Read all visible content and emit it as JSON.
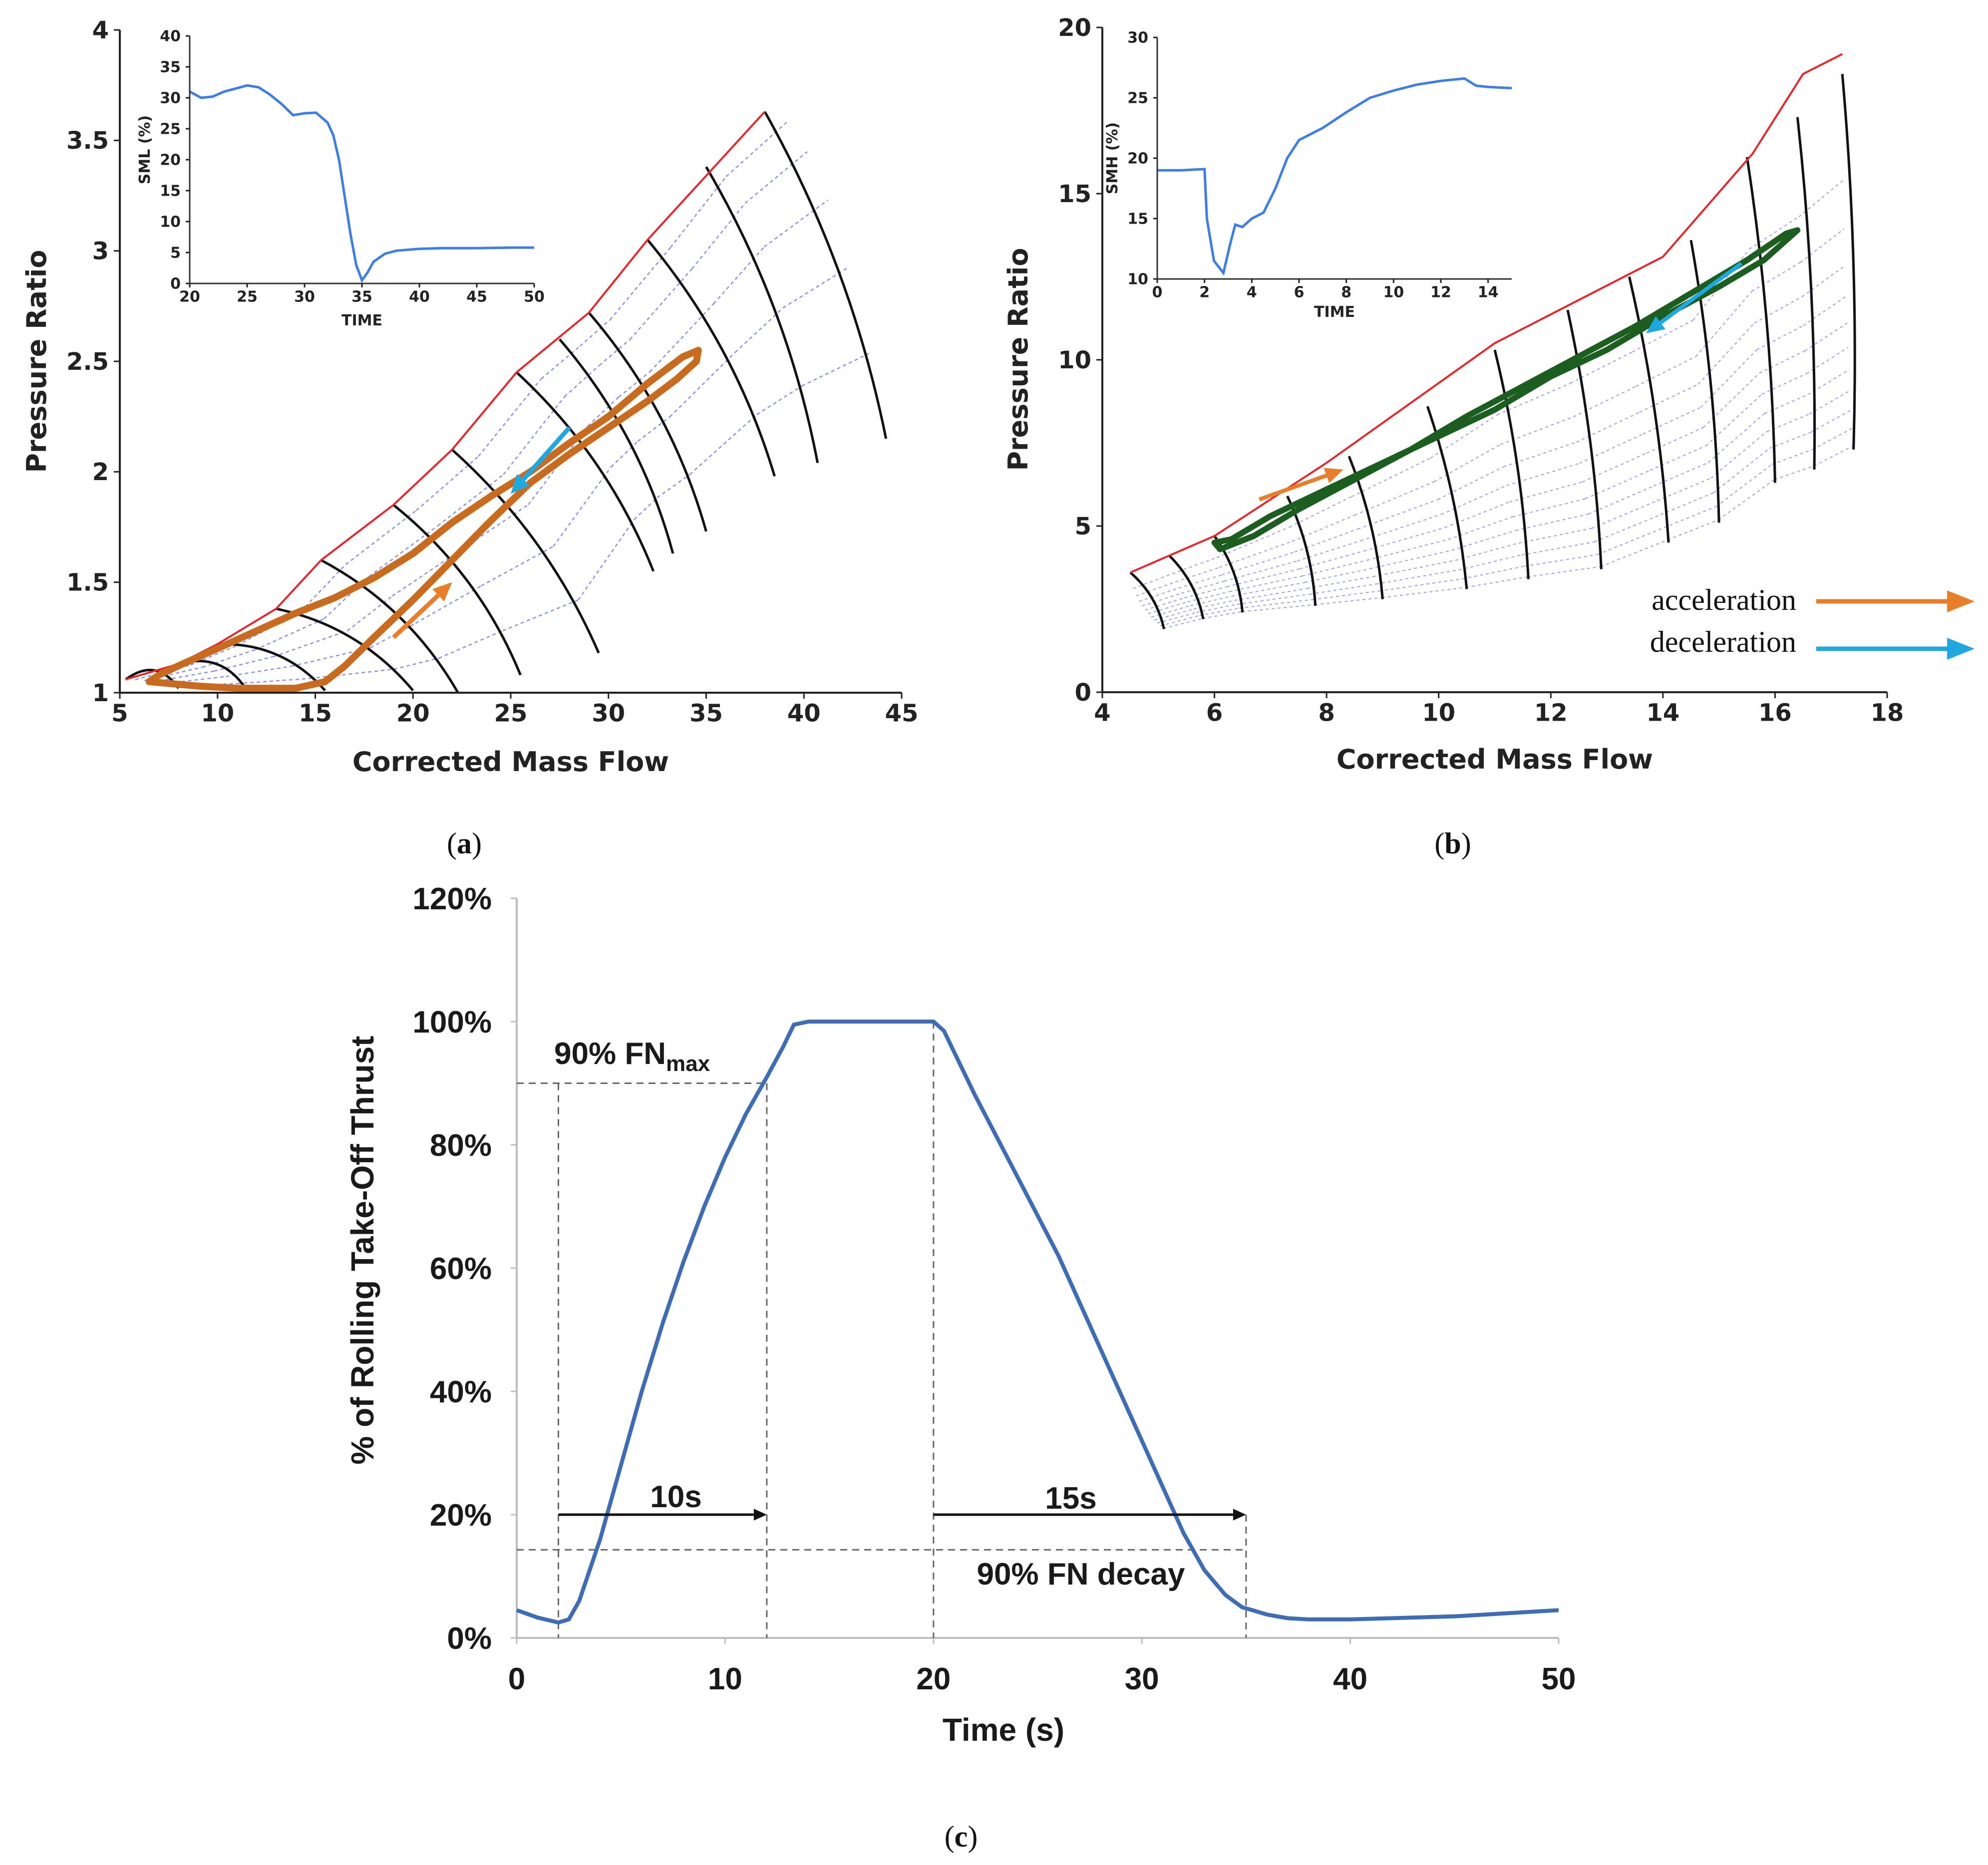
{
  "chart_data": [
    {
      "id": "a",
      "type": "line",
      "panel_label": "a",
      "xlabel": "Corrected Mass Flow",
      "ylabel": "Pressure Ratio",
      "xlim": [
        5,
        45
      ],
      "ylim": [
        1,
        4
      ],
      "xticks": [
        5,
        10,
        15,
        20,
        25,
        30,
        35,
        40,
        45
      ],
      "yticks": [
        1,
        1.5,
        2,
        2.5,
        3,
        3.5,
        4
      ],
      "ytick_labels": [
        "1",
        "1.5",
        "2",
        "2.5",
        "3",
        "3.5",
        "4"
      ],
      "surge_line": {
        "color": "#e8252b",
        "x": [
          5.3,
          8,
          10,
          13,
          15.3,
          19,
          22,
          25.3,
          29,
          32,
          38
        ],
        "y": [
          1.06,
          1.13,
          1.22,
          1.38,
          1.6,
          1.85,
          2.1,
          2.45,
          2.72,
          3.05,
          3.63
        ]
      },
      "speed_lines": [
        {
          "start": [
            5.3,
            1.06
          ],
          "end": [
            8,
            1.02
          ]
        },
        {
          "start": [
            8,
            1.13
          ],
          "end": [
            11.5,
            1.01
          ]
        },
        {
          "start": [
            10,
            1.22
          ],
          "end": [
            15.5,
            1.01
          ]
        },
        {
          "start": [
            13,
            1.38
          ],
          "end": [
            20,
            1.01
          ]
        },
        {
          "start": [
            15.3,
            1.6
          ],
          "end": [
            22.3,
            1.0
          ]
        },
        {
          "start": [
            19,
            1.85
          ],
          "end": [
            25.5,
            1.08
          ]
        },
        {
          "start": [
            22,
            2.1
          ],
          "end": [
            29.5,
            1.18
          ]
        },
        {
          "start": [
            25.3,
            2.45
          ],
          "end": [
            32.3,
            1.55
          ]
        },
        {
          "start": [
            27.5,
            2.6
          ],
          "end": [
            33.3,
            1.63
          ]
        },
        {
          "start": [
            29,
            2.72
          ],
          "end": [
            35,
            1.73
          ]
        },
        {
          "start": [
            32,
            3.05
          ],
          "end": [
            38.5,
            1.98
          ]
        },
        {
          "start": [
            35,
            3.38
          ],
          "end": [
            40.7,
            2.04
          ]
        },
        {
          "start": [
            38,
            3.63
          ],
          "end": [
            44.2,
            2.15
          ]
        }
      ],
      "transient_path": {
        "color": "#c96b1e",
        "x": [
          6.5,
          9,
          11,
          12.5,
          14,
          15.5,
          16.5,
          18,
          20,
          22,
          24,
          26,
          28,
          30,
          32,
          33.5,
          34.5,
          34.6,
          33.8,
          32,
          30,
          28,
          26,
          24,
          22,
          20,
          18,
          16,
          14,
          12,
          10,
          8.2,
          7
        ],
        "y": [
          1.05,
          1.03,
          1.02,
          1.02,
          1.02,
          1.05,
          1.12,
          1.25,
          1.42,
          1.6,
          1.78,
          1.95,
          2.08,
          2.2,
          2.32,
          2.42,
          2.5,
          2.55,
          2.52,
          2.4,
          2.25,
          2.13,
          2.0,
          1.89,
          1.77,
          1.63,
          1.52,
          1.43,
          1.36,
          1.28,
          1.2,
          1.13,
          1.08
        ]
      },
      "arrows": [
        {
          "name": "acceleration",
          "color": "#e87e2a",
          "from": [
            19,
            1.25
          ],
          "to": [
            22,
            1.5
          ]
        },
        {
          "name": "deceleration",
          "color": "#1fa7e0",
          "from": [
            28,
            2.2
          ],
          "to": [
            25,
            1.9
          ]
        }
      ],
      "inset": {
        "ylabel": "SML (%)",
        "xlabel": "TIME",
        "xlim": [
          20,
          50
        ],
        "ylim": [
          0,
          40
        ],
        "xticks": [
          20,
          25,
          30,
          35,
          40,
          45,
          50
        ],
        "yticks": [
          0,
          5,
          10,
          15,
          20,
          25,
          30,
          35,
          40
        ],
        "color": "#3d7ee6",
        "x": [
          20,
          21,
          22,
          23,
          24,
          25,
          26,
          27,
          28,
          29,
          30,
          31,
          32,
          32.5,
          33,
          33.5,
          34,
          34.5,
          35,
          35.5,
          36,
          37,
          38,
          40,
          42,
          45,
          48,
          50
        ],
        "y": [
          31,
          30,
          30.2,
          31,
          31.5,
          32,
          31.7,
          30.5,
          29,
          27.2,
          27.5,
          27.6,
          26,
          24,
          20,
          14,
          8,
          3,
          0.5,
          1.8,
          3.5,
          4.8,
          5.3,
          5.6,
          5.7,
          5.7,
          5.8,
          5.8
        ]
      }
    },
    {
      "id": "b",
      "type": "line",
      "panel_label": "b",
      "xlabel": "Corrected Mass Flow",
      "ylabel": "Pressure Ratio",
      "xlim": [
        4,
        18
      ],
      "ylim": [
        0,
        20
      ],
      "xticks": [
        4,
        6,
        8,
        10,
        12,
        14,
        16,
        18
      ],
      "yticks": [
        0,
        5,
        10,
        15,
        20
      ],
      "surge_line": {
        "color": "#e8252b",
        "x": [
          4.5,
          6,
          8,
          11,
          14,
          15.6,
          16.5,
          17.2
        ],
        "y": [
          3.6,
          4.7,
          6.9,
          10.5,
          13.1,
          16.2,
          18.6,
          19.2
        ]
      },
      "speed_lines": [
        {
          "start": [
            4.5,
            3.6
          ],
          "end": [
            5.1,
            1.9
          ]
        },
        {
          "start": [
            5.2,
            4.1
          ],
          "end": [
            5.8,
            2.2
          ]
        },
        {
          "start": [
            6,
            4.7
          ],
          "end": [
            6.5,
            2.4
          ]
        },
        {
          "start": [
            7.3,
            5.9
          ],
          "end": [
            7.8,
            2.6
          ]
        },
        {
          "start": [
            8.4,
            7.1
          ],
          "end": [
            9,
            2.8
          ]
        },
        {
          "start": [
            9.8,
            8.6
          ],
          "end": [
            10.5,
            3.1
          ]
        },
        {
          "start": [
            11,
            10.3
          ],
          "end": [
            11.6,
            3.4
          ]
        },
        {
          "start": [
            12.3,
            11.5
          ],
          "end": [
            12.9,
            3.7
          ]
        },
        {
          "start": [
            13.4,
            12.5
          ],
          "end": [
            14.1,
            4.5
          ]
        },
        {
          "start": [
            14.5,
            13.6
          ],
          "end": [
            15,
            5.1
          ]
        },
        {
          "start": [
            15.5,
            16.1
          ],
          "end": [
            16,
            6.3
          ]
        },
        {
          "start": [
            16.4,
            17.3
          ],
          "end": [
            16.7,
            6.7
          ]
        },
        {
          "start": [
            17.2,
            18.6
          ],
          "end": [
            17.4,
            7.3
          ]
        }
      ],
      "transient_path": {
        "color": "#1b5e20",
        "x": [
          6.3,
          7,
          8,
          9,
          10,
          11,
          12,
          13,
          14,
          15,
          15.8,
          16.4,
          16.2,
          15.5,
          14.5,
          13.5,
          12.5,
          11.5,
          10.5,
          9.5,
          8.5,
          7.5,
          6.7,
          6.1,
          6.0
        ],
        "y": [
          4.6,
          5.3,
          6.1,
          6.9,
          7.7,
          8.5,
          9.5,
          10.3,
          11.3,
          12.2,
          13.0,
          13.9,
          13.8,
          13.0,
          12.0,
          11.0,
          10.1,
          9.2,
          8.3,
          7.3,
          6.4,
          5.5,
          4.7,
          4.3,
          4.5
        ]
      },
      "arrows": [
        {
          "name": "acceleration",
          "color": "#e87e2a",
          "from": [
            6.8,
            5.8
          ],
          "to": [
            8.3,
            6.7
          ]
        },
        {
          "name": "deceleration",
          "color": "#1fa7e0",
          "from": [
            15.4,
            12.9
          ],
          "to": [
            13.7,
            10.8
          ]
        }
      ],
      "inset": {
        "ylabel": "SMH (%)",
        "xlabel": "TIME",
        "xlim": [
          0,
          15
        ],
        "ylim": [
          10,
          30
        ],
        "xticks": [
          0,
          2,
          4,
          6,
          8,
          10,
          12,
          14
        ],
        "yticks": [
          10,
          15,
          20,
          25,
          30
        ],
        "color": "#3d7ee6",
        "x": [
          0,
          1,
          2,
          2.1,
          2.4,
          2.8,
          3.1,
          3.3,
          3.6,
          4,
          4.5,
          5,
          5.5,
          6,
          7,
          8,
          9,
          10,
          11,
          12,
          12.5,
          13,
          13.5,
          14,
          15
        ],
        "y": [
          19,
          19,
          19.1,
          15,
          11.5,
          10.5,
          13,
          14.5,
          14.3,
          15,
          15.5,
          17.5,
          20,
          21.5,
          22.5,
          23.8,
          25,
          25.6,
          26.1,
          26.4,
          26.5,
          26.6,
          26.0,
          25.9,
          25.8
        ]
      },
      "legend": {
        "acceleration_label": "acceleration",
        "deceleration_label": "deceleration",
        "acceleration_color": "#e87e2a",
        "deceleration_color": "#1fa7e0"
      }
    },
    {
      "id": "c",
      "type": "line",
      "panel_label": "c",
      "xlabel": "Time (s)",
      "ylabel": "% of Rolling Take-Off Thrust",
      "xlim": [
        0,
        50
      ],
      "ylim": [
        0,
        120
      ],
      "xticks": [
        0,
        10,
        20,
        30,
        40,
        50
      ],
      "yticks": [
        0,
        20,
        40,
        60,
        80,
        100,
        120
      ],
      "ytick_labels": [
        "0%",
        "20%",
        "40%",
        "60%",
        "80%",
        "100%",
        "120%"
      ],
      "color": "#3e6db5",
      "x": [
        0,
        1,
        2,
        2.5,
        3,
        4,
        5,
        6,
        7,
        8,
        9,
        10,
        11,
        12,
        12.8,
        13.3,
        14,
        16,
        18,
        20,
        20.5,
        21,
        22,
        24,
        26,
        28,
        30,
        32,
        33,
        34,
        34.8,
        35.3,
        36,
        37,
        38,
        40,
        45,
        50
      ],
      "y": [
        4.5,
        3.3,
        2.5,
        3,
        6,
        16,
        28,
        40,
        51,
        61,
        70,
        78,
        85,
        91,
        96,
        99.5,
        100,
        100,
        100,
        100,
        98.5,
        95,
        88,
        75,
        62,
        47,
        32,
        17,
        11,
        7,
        5,
        4.5,
        3.8,
        3.2,
        3,
        3,
        3.5,
        4.5
      ],
      "ref_lines": {
        "h_levels": [
          90,
          14.3
        ],
        "v_times": [
          2,
          12,
          20,
          35
        ]
      },
      "annotations": {
        "fnmax_main": "90% FN",
        "fnmax_sub": "max",
        "decay_label": "90% FN decay",
        "accel_time": "10s",
        "decel_time": "15s"
      }
    }
  ]
}
